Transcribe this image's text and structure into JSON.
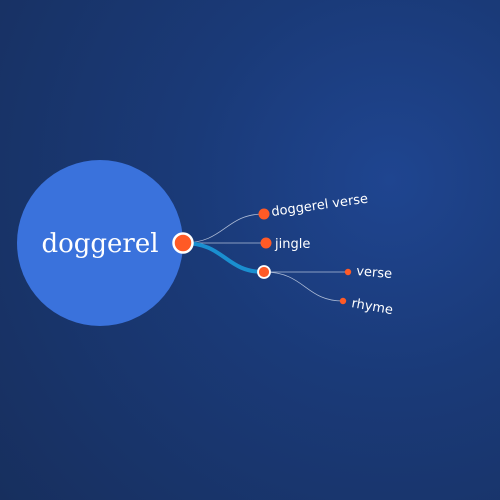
{
  "root": {
    "label": "doggerel",
    "circle_color": "#3a72dc"
  },
  "nodes": {
    "doggerel_verse": {
      "label": "doggerel verse"
    },
    "jingle": {
      "label": "jingle"
    },
    "hub": {
      "label": ""
    },
    "verse": {
      "label": "verse"
    },
    "rhyme": {
      "label": "rhyme"
    }
  },
  "colors": {
    "node_fill": "#ff5a26",
    "node_stroke": "#ffffff",
    "link": "#c9d3e6",
    "highlight_link": "#1a8fd0"
  }
}
